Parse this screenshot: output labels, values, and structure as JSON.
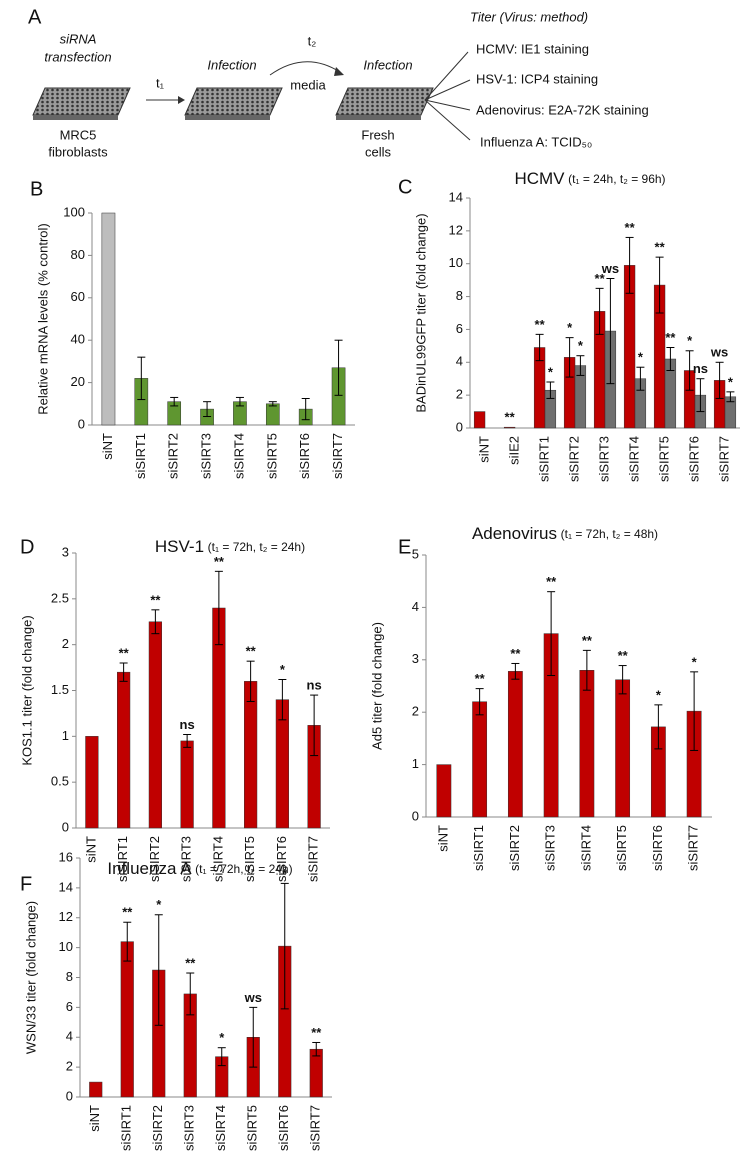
{
  "diagram": {
    "panel": "A",
    "step1_title": [
      "siRNA",
      "transfection"
    ],
    "step1_label": [
      "MRC5",
      "fibroblasts"
    ],
    "arrow1": "t₁",
    "step2_title": "Infection",
    "arrow2_top": "t₂",
    "arrow2_bottom": "media",
    "step3_title": "Infection",
    "step3_label": [
      "Fresh",
      "cells"
    ],
    "titer_header": "Titer (Virus: method)",
    "titers": [
      "HCMV: IE1 staining",
      "HSV-1: ICP4 staining",
      "Adenovirus: E2A-72K staining",
      "Influenza A: TCID₅₀"
    ]
  },
  "chart_data": [
    {
      "type": "bar",
      "panel": "B",
      "ylabel": "Relative mRNA levels (% control)",
      "categories": [
        "siNT",
        "siSIRT1",
        "siSIRT2",
        "siSIRT3",
        "siSIRT4",
        "siSIRT5",
        "siSIRT6",
        "siSIRT7"
      ],
      "ylim": [
        0,
        100
      ],
      "yticks": [
        0,
        20,
        40,
        60,
        80,
        100
      ],
      "series": [
        {
          "colors": [
            "#bdbdbd",
            "#5f9630",
            "#5f9630",
            "#5f9630",
            "#5f9630",
            "#5f9630",
            "#5f9630",
            "#5f9630"
          ],
          "values": [
            100,
            22,
            11,
            7.5,
            11,
            10,
            7.5,
            27
          ],
          "errors": [
            null,
            10,
            2,
            3.5,
            2,
            1,
            5,
            13
          ]
        }
      ]
    },
    {
      "type": "bar",
      "panel": "C",
      "title": "HCMV",
      "subtitle": "(t₁ = 24h, t₂ = 96h)",
      "ylabel": "BADinUL99GFP titer (fold change)",
      "categories": [
        "siNT",
        "siIE2",
        "siSIRT1",
        "siSIRT2",
        "siSIRT3",
        "siSIRT4",
        "siSIRT5",
        "siSIRT6",
        "siSIRT7"
      ],
      "ylim": [
        0,
        14
      ],
      "yticks": [
        0,
        2,
        4,
        6,
        8,
        10,
        12,
        14
      ],
      "series": [
        {
          "color": "#c00000",
          "values": [
            1,
            0.05,
            4.9,
            4.3,
            7.1,
            9.9,
            8.7,
            3.5,
            2.9
          ],
          "errors": [
            null,
            null,
            0.8,
            1.2,
            1.4,
            1.7,
            1.7,
            1.2,
            1.1
          ],
          "annotations": [
            null,
            "**",
            "**",
            "*",
            "**",
            "**",
            "**",
            "*",
            "ws"
          ]
        },
        {
          "color": "#6f6f6f",
          "values": [
            null,
            null,
            2.3,
            3.8,
            5.9,
            3.0,
            4.2,
            2.0,
            1.9
          ],
          "errors": [
            null,
            null,
            0.5,
            0.6,
            3.2,
            0.7,
            0.7,
            1.0,
            0.3
          ],
          "annotations": [
            null,
            null,
            "*",
            "*",
            "ws",
            "*",
            "**",
            "ns",
            "*"
          ]
        }
      ]
    },
    {
      "type": "bar",
      "panel": "D",
      "title": "HSV-1",
      "subtitle": "(t₁ = 72h, t₂ = 24h)",
      "ylabel": "KOS1.1 titer (fold change)",
      "categories": [
        "siNT",
        "siSIRT1",
        "siSIRT2",
        "siSIRT3",
        "siSIRT4",
        "siSIRT5",
        "siSIRT6",
        "siSIRT7"
      ],
      "ylim": [
        0,
        3
      ],
      "yticks": [
        0,
        0.5,
        1,
        1.5,
        2,
        2.5,
        3
      ],
      "series": [
        {
          "color": "#c00000",
          "values": [
            1,
            1.7,
            2.25,
            0.95,
            2.4,
            1.6,
            1.4,
            1.12
          ],
          "errors": [
            null,
            0.1,
            0.13,
            0.07,
            0.4,
            0.22,
            0.22,
            0.33
          ],
          "annotations": [
            null,
            "**",
            "**",
            "ns",
            "**",
            "**",
            "*",
            "ns"
          ]
        }
      ]
    },
    {
      "type": "bar",
      "panel": "E",
      "title": "Adenovirus",
      "subtitle": "(t₁ = 72h, t₂ = 48h)",
      "ylabel": "Ad5 titer (fold change)",
      "categories": [
        "siNT",
        "siSIRT1",
        "siSIRT2",
        "siSIRT3",
        "siSIRT4",
        "siSIRT5",
        "siSIRT6",
        "siSIRT7"
      ],
      "ylim": [
        0,
        5
      ],
      "yticks": [
        0,
        1,
        2,
        3,
        4,
        5
      ],
      "series": [
        {
          "color": "#c00000",
          "values": [
            1,
            2.2,
            2.78,
            3.5,
            2.8,
            2.62,
            1.72,
            2.02
          ],
          "errors": [
            null,
            0.25,
            0.15,
            0.8,
            0.38,
            0.27,
            0.42,
            0.75
          ],
          "annotations": [
            null,
            "**",
            "**",
            "**",
            "**",
            "**",
            "*",
            "*"
          ]
        }
      ]
    },
    {
      "type": "bar",
      "panel": "F",
      "title": "Influenza A",
      "subtitle": "(t₁ = 72h, t₂ = 24h)",
      "ylabel": "WSN/33 titer (fold change)",
      "categories": [
        "siNT",
        "siSIRT1",
        "siSIRT2",
        "siSIRT3",
        "siSIRT4",
        "siSIRT5",
        "siSIRT6",
        "siSIRT7"
      ],
      "ylim": [
        0,
        16
      ],
      "yticks": [
        0,
        2,
        4,
        6,
        8,
        10,
        12,
        14,
        16
      ],
      "series": [
        {
          "color": "#c00000",
          "values": [
            1,
            10.4,
            8.5,
            6.9,
            2.7,
            4.0,
            10.1,
            3.2
          ],
          "errors": [
            null,
            1.3,
            3.7,
            1.4,
            0.6,
            2.0,
            4.2,
            0.45
          ],
          "annotations": [
            null,
            "**",
            "*",
            "**",
            "*",
            "ws",
            "*",
            "**"
          ]
        }
      ]
    }
  ]
}
